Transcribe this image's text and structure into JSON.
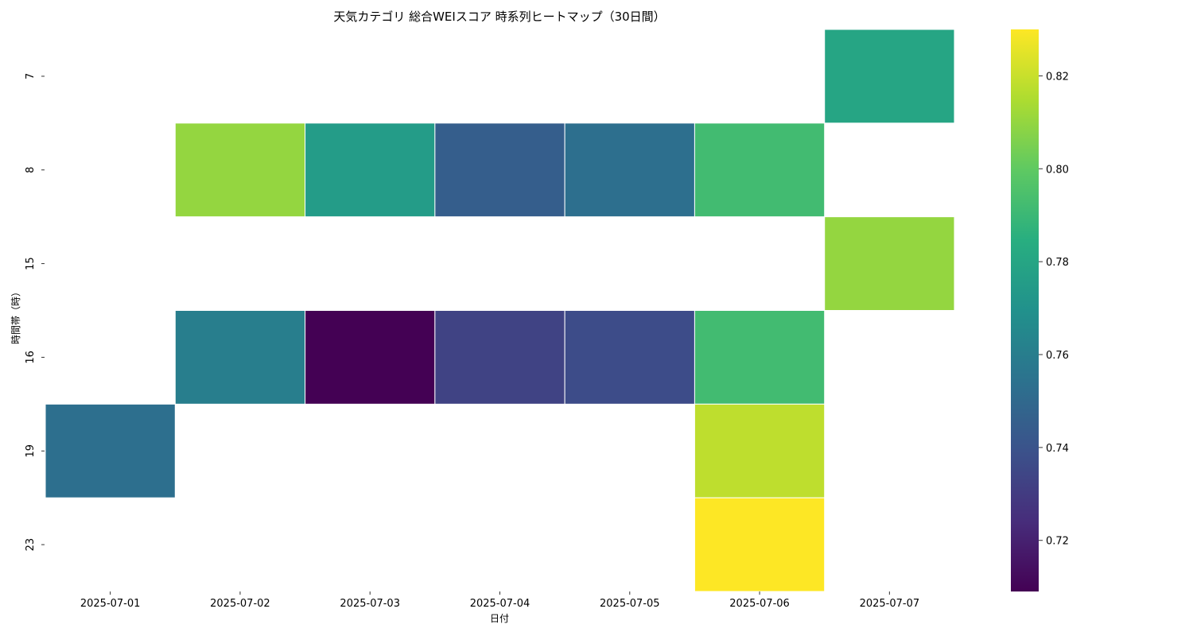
{
  "chart_data": {
    "type": "heatmap",
    "title": "天気カテゴリ 総合WEIスコア 時系列ヒートマップ（30日間）",
    "xlabel": "日付",
    "ylabel": "時間帯（時）",
    "x_categories": [
      "2025-07-01",
      "2025-07-02",
      "2025-07-03",
      "2025-07-04",
      "2025-07-05",
      "2025-07-06",
      "2025-07-07"
    ],
    "y_categories": [
      "7",
      "8",
      "15",
      "16",
      "19",
      "23"
    ],
    "values": [
      [
        null,
        null,
        null,
        null,
        null,
        null,
        0.78
      ],
      [
        null,
        0.81,
        0.775,
        0.745,
        0.753,
        0.792,
        null
      ],
      [
        null,
        null,
        null,
        null,
        null,
        null,
        0.81
      ],
      [
        null,
        0.76,
        0.709,
        0.733,
        0.737,
        0.792,
        null
      ],
      [
        0.753,
        null,
        null,
        null,
        null,
        0.818,
        null
      ],
      [
        null,
        null,
        null,
        null,
        null,
        0.83,
        null
      ]
    ],
    "colormap": "viridis",
    "colorbar": {
      "vmin": 0.709,
      "vmax": 0.83,
      "ticks": [
        "0.72",
        "0.74",
        "0.76",
        "0.78",
        "0.80",
        "0.82"
      ]
    },
    "grid": false,
    "cell_border_color": "#ffffff"
  }
}
